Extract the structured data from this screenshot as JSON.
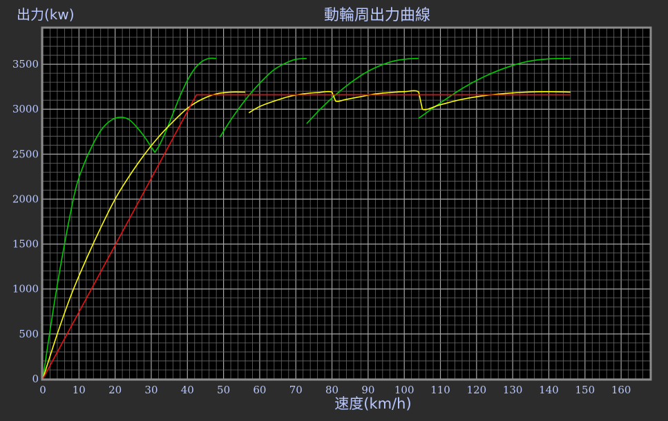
{
  "chart_data": {
    "type": "line",
    "title": "動輪周出力曲線",
    "ylabel": "出力(kw)",
    "xlabel": "速度(km/h)",
    "xlim": [
      0,
      168
    ],
    "ylim": [
      0,
      3900
    ],
    "xticks": [
      0,
      10,
      20,
      30,
      40,
      50,
      60,
      70,
      80,
      90,
      100,
      110,
      120,
      130,
      140,
      150,
      160
    ],
    "yticks": [
      0,
      500,
      1000,
      1500,
      2000,
      2500,
      3000,
      3500
    ],
    "grid": true,
    "background": "#000000",
    "frame_color": "#8c8c8c",
    "label_color": "#b9c8ff",
    "series": [
      {
        "color": "#00cc00",
        "x": [
          0,
          3,
          6,
          9,
          11,
          12,
          14,
          16,
          18,
          20,
          22,
          24,
          26,
          28,
          30,
          31,
          32,
          34,
          36,
          38,
          40,
          42,
          44,
          46,
          48
        ],
        "y": [
          0,
          800,
          1500,
          2100,
          2350,
          2450,
          2620,
          2760,
          2850,
          2900,
          2910,
          2880,
          2800,
          2700,
          2580,
          2520,
          2580,
          2750,
          2950,
          3150,
          3320,
          3450,
          3530,
          3565,
          3565
        ]
      },
      {
        "color": "#00cc00",
        "x": [
          49,
          52,
          55,
          58,
          61,
          64,
          67,
          70,
          73
        ],
        "y": [
          2690,
          2880,
          3050,
          3200,
          3330,
          3440,
          3510,
          3555,
          3565
        ]
      },
      {
        "color": "#00cc00",
        "x": [
          73,
          77,
          81,
          85,
          89,
          93,
          97,
          101,
          104
        ],
        "y": [
          2840,
          3010,
          3160,
          3290,
          3400,
          3480,
          3535,
          3560,
          3565
        ]
      },
      {
        "color": "#00cc00",
        "x": [
          104,
          110,
          116,
          122,
          128,
          134,
          140,
          146
        ],
        "y": [
          2900,
          3070,
          3230,
          3360,
          3460,
          3530,
          3560,
          3565
        ]
      },
      {
        "color": "#ffff00",
        "x": [
          0,
          4,
          8,
          12,
          16,
          20,
          24,
          28,
          32,
          36,
          40,
          44,
          48,
          52,
          56
        ],
        "y": [
          0,
          500,
          950,
          1330,
          1680,
          2000,
          2260,
          2490,
          2690,
          2860,
          3010,
          3110,
          3170,
          3190,
          3190
        ]
      },
      {
        "color": "#ffff00",
        "x": [
          57,
          60,
          64,
          68,
          72,
          76,
          80,
          81,
          84,
          88,
          92,
          96,
          100,
          104,
          105,
          110,
          116,
          122,
          128,
          134,
          140,
          146
        ],
        "y": [
          2960,
          3030,
          3090,
          3140,
          3170,
          3185,
          3190,
          3090,
          3110,
          3140,
          3170,
          3185,
          3195,
          3190,
          3000,
          3050,
          3110,
          3150,
          3175,
          3190,
          3195,
          3190
        ]
      },
      {
        "color": "#ee1111",
        "x": [
          0,
          42.5,
          146
        ],
        "y": [
          0,
          3160,
          3160
        ]
      }
    ]
  }
}
